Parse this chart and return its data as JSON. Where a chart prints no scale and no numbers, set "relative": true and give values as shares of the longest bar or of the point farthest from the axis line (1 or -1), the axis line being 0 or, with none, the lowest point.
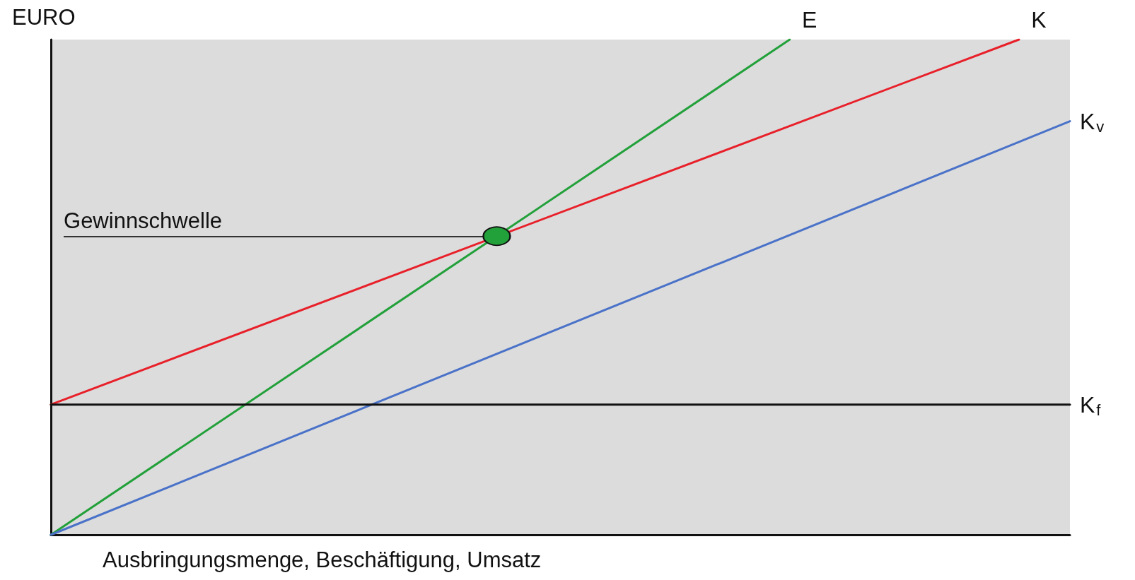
{
  "chart_data": {
    "type": "line",
    "relative": true,
    "ylabel": "EURO",
    "xlabel": "Ausbringungsmenge, Beschäftigung, Umsatz",
    "legend": false,
    "grid": false,
    "marker": "none",
    "line_style": "solid",
    "categories": [
      null,
      null,
      null,
      null,
      null,
      null,
      null,
      null,
      null,
      null,
      null,
      null,
      null,
      null,
      null,
      null,
      null,
      null,
      null,
      null,
      null,
      null,
      null,
      null,
      null,
      null,
      null,
      null,
      null,
      null,
      null,
      null,
      null,
      null,
      null,
      null,
      null,
      null,
      null,
      null,
      null,
      null,
      null,
      null,
      null,
      null,
      null,
      null,
      null,
      null,
      null,
      null,
      null,
      null,
      null,
      null,
      null,
      null,
      null,
      null,
      null,
      null,
      null,
      null,
      null,
      null,
      null,
      null,
      null,
      null,
      null,
      null,
      null,
      null,
      null,
      null,
      null,
      null,
      null,
      null,
      null
    ],
    "series": [
      {
        "name": "E",
        "color": "#22a03a",
        "values": [
          0,
          null,
          null,
          null,
          null,
          null,
          null,
          null,
          null,
          null,
          null,
          null,
          null,
          null,
          null,
          null,
          null,
          null,
          null,
          null,
          null,
          null,
          null,
          null,
          null,
          null,
          null,
          null,
          null,
          null,
          null,
          null,
          null,
          null,
          null,
          0.603,
          null,
          null,
          null,
          null,
          null,
          null,
          null,
          null,
          null,
          null,
          null,
          null,
          null,
          null,
          null,
          null,
          null,
          null,
          null,
          null,
          null,
          null,
          1,
          null,
          null,
          null,
          null,
          null,
          null,
          null,
          null,
          null,
          null,
          null,
          null,
          null,
          null,
          null,
          null,
          null,
          null,
          null,
          null,
          null,
          null
        ]
      },
      {
        "name": "K",
        "color": "#e8202a",
        "values": [
          0.263,
          null,
          null,
          null,
          null,
          null,
          null,
          null,
          null,
          null,
          null,
          null,
          null,
          null,
          null,
          null,
          null,
          null,
          null,
          null,
          null,
          null,
          null,
          null,
          null,
          null,
          null,
          null,
          null,
          null,
          null,
          null,
          null,
          null,
          null,
          null,
          null,
          null,
          null,
          null,
          null,
          null,
          null,
          null,
          null,
          null,
          null,
          null,
          null,
          null,
          null,
          null,
          null,
          null,
          null,
          null,
          null,
          null,
          null,
          null,
          null,
          null,
          null,
          null,
          null,
          null,
          null,
          null,
          null,
          null,
          null,
          null,
          null,
          null,
          null,
          null,
          1,
          null,
          null,
          null,
          null
        ]
      },
      {
        "name": "K$_{v}$",
        "color": "#4a72c8",
        "values": [
          0,
          null,
          null,
          null,
          null,
          null,
          null,
          null,
          null,
          null,
          null,
          null,
          null,
          null,
          null,
          null,
          null,
          null,
          null,
          null,
          null,
          null,
          null,
          null,
          null,
          null,
          null,
          null,
          null,
          null,
          null,
          null,
          null,
          null,
          null,
          null,
          null,
          null,
          null,
          null,
          null,
          null,
          null,
          null,
          null,
          null,
          null,
          null,
          null,
          null,
          null,
          null,
          null,
          null,
          null,
          null,
          null,
          null,
          null,
          null,
          null,
          null,
          null,
          null,
          null,
          null,
          null,
          null,
          null,
          null,
          null,
          null,
          null,
          null,
          null,
          null,
          null,
          null,
          null,
          null,
          0.835
        ]
      },
      {
        "name": "K$_{f}$",
        "color": "#111111",
        "values": [
          0.263,
          null,
          null,
          null,
          null,
          null,
          null,
          null,
          null,
          null,
          null,
          null,
          null,
          null,
          null,
          null,
          null,
          null,
          null,
          null,
          null,
          null,
          null,
          null,
          null,
          null,
          null,
          null,
          null,
          null,
          null,
          null,
          null,
          null,
          null,
          null,
          null,
          null,
          null,
          null,
          null,
          null,
          null,
          null,
          null,
          null,
          null,
          null,
          null,
          null,
          null,
          null,
          null,
          null,
          null,
          null,
          null,
          null,
          null,
          null,
          null,
          null,
          null,
          null,
          null,
          null,
          null,
          null,
          null,
          null,
          null,
          null,
          null,
          null,
          null,
          null,
          null,
          null,
          null,
          null,
          0.263
        ]
      }
    ],
    "annotations": [
      "Gewinnschwelle"
    ]
  }
}
